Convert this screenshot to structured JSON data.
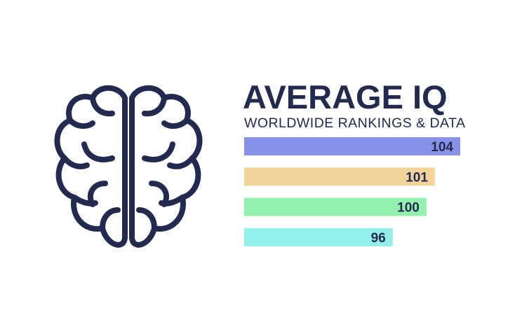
{
  "chart_data": {
    "type": "bar",
    "orientation": "horizontal",
    "title": "AVERAGE IQ",
    "subtitle": "WORLDWIDE RANKINGS & DATA",
    "values": [
      104,
      101,
      100,
      96
    ],
    "colors": [
      "#8891e8",
      "#f2d49a",
      "#93f2b0",
      "#93efe9"
    ]
  }
}
